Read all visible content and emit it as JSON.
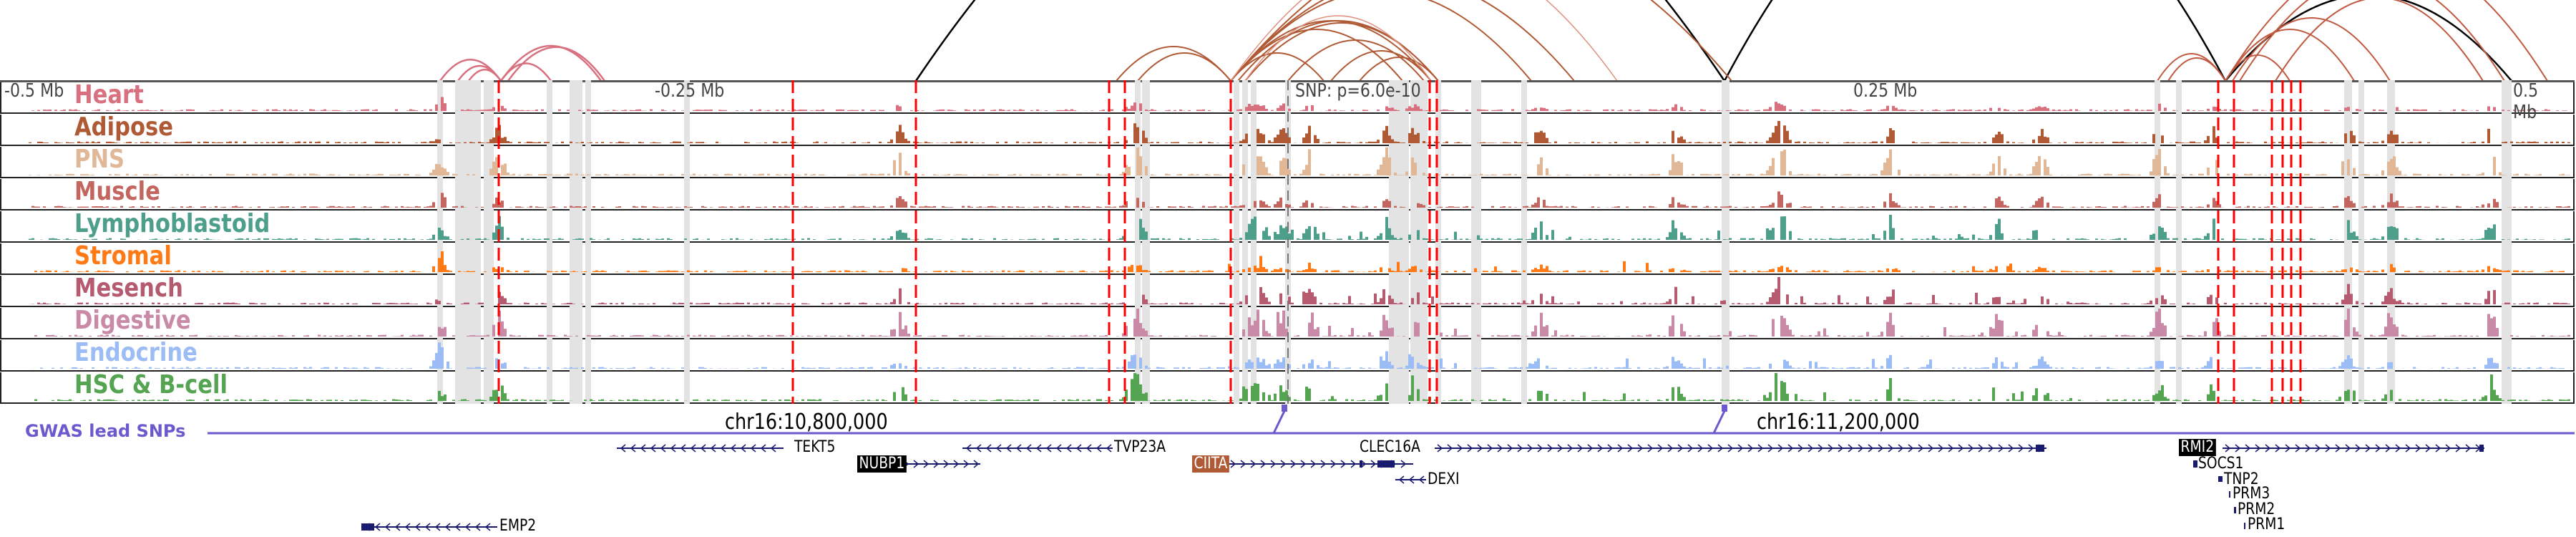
{
  "axis": {
    "left": "-0.5 Mb",
    "left_mid": "-0.25 Mb",
    "center": "SNP: p=6.0e-10",
    "right_mid": "0.25 Mb",
    "right": "0.5 Mb"
  },
  "tracks": [
    {
      "label": "Heart",
      "color": "#d9707f"
    },
    {
      "label": "Adipose",
      "color": "#b05a35"
    },
    {
      "label": "PNS",
      "color": "#e0b898"
    },
    {
      "label": "Muscle",
      "color": "#c46660"
    },
    {
      "label": "Lymphoblastoid",
      "color": "#4e9e8c"
    },
    {
      "label": "Stromal",
      "color": "#ff7a14"
    },
    {
      "label": "Mesench",
      "color": "#b65a70"
    },
    {
      "label": "Digestive",
      "color": "#c98aa8"
    },
    {
      "label": "Endocrine",
      "color": "#9cbcf5"
    },
    {
      "label": "HSC & B-cell",
      "color": "#55a452"
    }
  ],
  "gwas_label": "GWAS lead SNPs",
  "chrom_labels": [
    "chr16:10,800,000",
    "chr16:11,200,000"
  ],
  "genes": {
    "tekt5": "TEKT5",
    "tvp23a": "TVP23A",
    "clec16a": "CLEC16A",
    "rmi2": "RMI2",
    "nubp1": "NUBP1",
    "ciita": "CIITA",
    "socs1": "SOCS1",
    "dexi": "DEXI",
    "tnp2": "TNP2",
    "prm3": "PRM3",
    "prm2": "PRM2",
    "prm1": "PRM1",
    "emp2": "EMP2"
  },
  "colors": {
    "gwas": "#6a5acd",
    "gene": "#1a1a6e",
    "highlight_gene": "#b05a35",
    "snp_marker": "#ff0000"
  }
}
